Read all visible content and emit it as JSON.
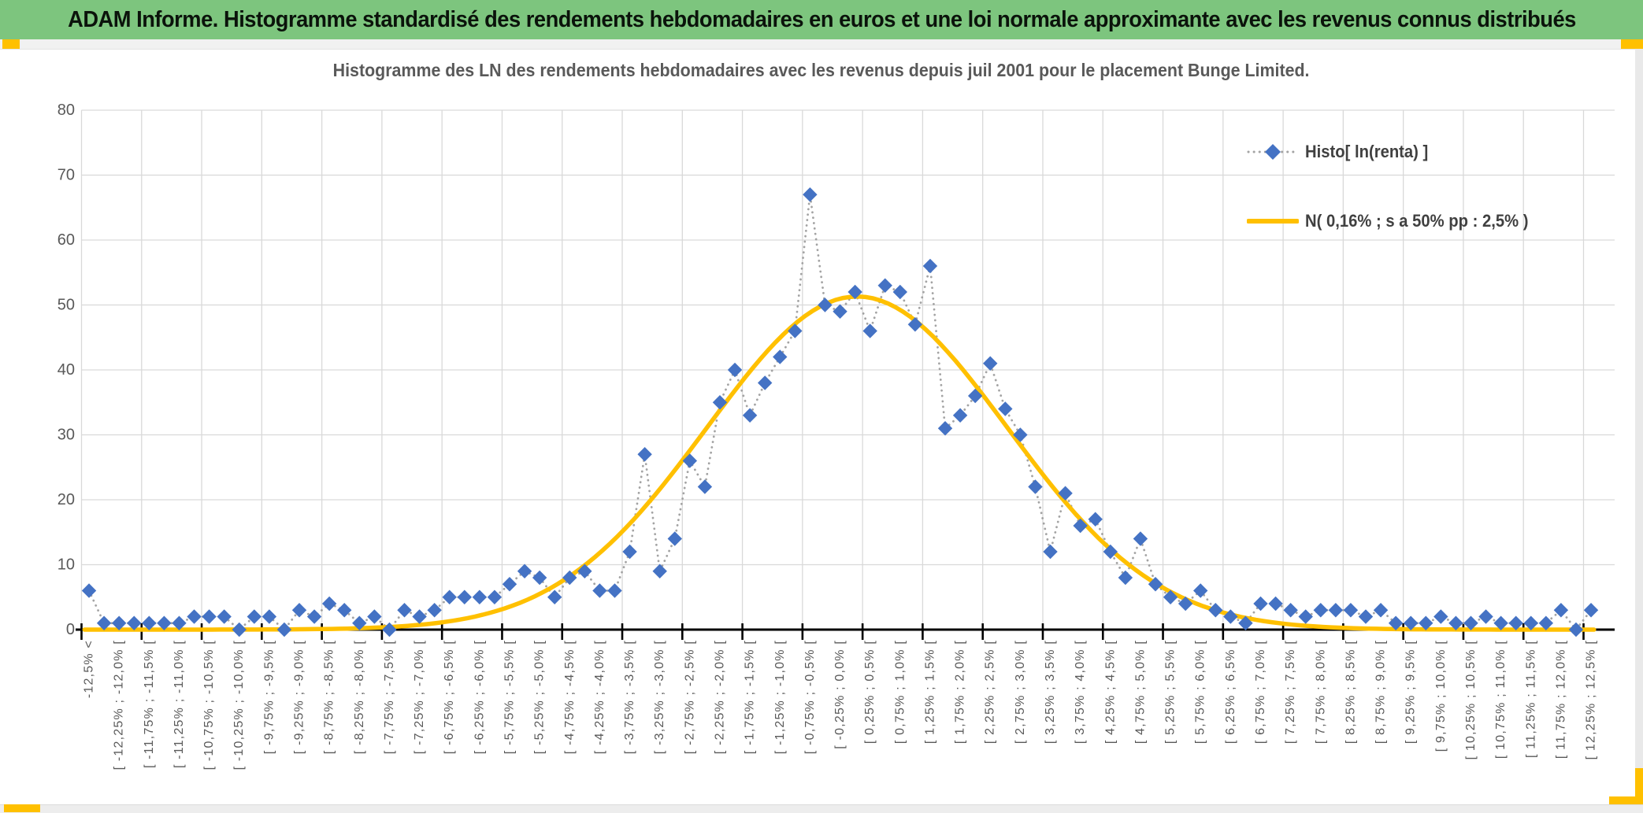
{
  "window": {
    "header_title": "ADAM Informe. Histogramme standardisé des rendements hebdomadaires en euros et une loi normale approximante avec les revenus connus distribués",
    "accent_color": "#ffc000",
    "header_bg_color": "#7dc57e"
  },
  "chart_data": {
    "type": "line",
    "title": "Histogramme des LN des rendements hebdomadaires avec les revenus depuis juil 2001 pour le placement Bunge Limited.",
    "ylim": [
      0,
      80
    ],
    "yticks": [
      0,
      10,
      20,
      30,
      40,
      50,
      60,
      70,
      80
    ],
    "grid": "both",
    "legend_position": "top-right",
    "x_label_step": 2,
    "x_labels": [
      "-12,5% <",
      "[ -12,25% ; -12,0% [",
      "[ -11,75% ; -11,5% [",
      "[ -11,25% ; -11,0% [",
      "[ -10,75% ; -10,5% [",
      "[ -10,25% ; -10,0% [",
      "[ -9,75% ; -9,5% [",
      "[ -9,25% ; -9,0% [",
      "[ -8,75% ; -8,5% [",
      "[ -8,25% ; -8,0% [",
      "[ -7,75% ; -7,5% [",
      "[ -7,25% ; -7,0% [",
      "[ -6,75% ; -6,5% [",
      "[ -6,25% ; -6,0% [",
      "[ -5,75% ; -5,5% [",
      "[ -5,25% ; -5,0% [",
      "[ -4,75% ; -4,5% [",
      "[ -4,25% ; -4,0% [",
      "[ -3,75% ; -3,5% [",
      "[ -3,25% ; -3,0% [",
      "[ -2,75% ; -2,5% [",
      "[ -2,25% ; -2,0% [",
      "[ -1,75% ; -1,5% [",
      "[ -1,25% ; -1,0% [",
      "[ -0,75% ; -0,5% [",
      "[ -0,25% ; 0,0% [",
      "[ 0,25% ; 0,5% [",
      "[ 0,75% ; 1,0% [",
      "[ 1,25% ; 1,5% [",
      "[ 1,75% ; 2,0% [",
      "[ 2,25% ; 2,5% [",
      "[ 2,75% ; 3,0% [",
      "[ 3,25% ; 3,5% [",
      "[ 3,75% ; 4,0% [",
      "[ 4,25% ; 4,5% [",
      "[ 4,75% ; 5,0% [",
      "[ 5,25% ; 5,5% [",
      "[ 5,75% ; 6,0% [",
      "[ 6,25% ; 6,5% [",
      "[ 6,75% ; 7,0% [",
      "[ 7,25% ; 7,5% [",
      "[ 7,75% ; 8,0% [",
      "[ 8,25% ; 8,5% [",
      "[ 8,75% ; 9,0% [",
      "[ 9,25% ; 9,5% [",
      "[ 9,75% ; 10,0% [",
      "[ 10,25% ; 10,5% [",
      "[ 10,75% ; 11,0% [",
      "[ 11,25% ; 11,5% [",
      "[ 11,75% ; 12,0% [",
      "[ 12,25% ; 12,5% ["
    ],
    "series": [
      {
        "name": "Histo[ ln(renta) ]",
        "kind": "scatter-dotted-line",
        "marker": "diamond",
        "marker_color": "#4472c4",
        "line_color": "#a3a3a3",
        "values": [
          6,
          1,
          1,
          1,
          1,
          1,
          1,
          2,
          2,
          2,
          0,
          2,
          2,
          0,
          3,
          2,
          4,
          3,
          1,
          2,
          0,
          3,
          2,
          3,
          5,
          5,
          5,
          5,
          7,
          9,
          8,
          5,
          8,
          9,
          6,
          6,
          12,
          27,
          9,
          14,
          26,
          22,
          35,
          40,
          33,
          38,
          42,
          46,
          67,
          50,
          49,
          52,
          46,
          53,
          52,
          47,
          56,
          31,
          33,
          36,
          41,
          34,
          30,
          22,
          12,
          21,
          16,
          17,
          12,
          8,
          14,
          7,
          5,
          4,
          6,
          3,
          2,
          1,
          4,
          4,
          3,
          2,
          3,
          3,
          3,
          2,
          3,
          1,
          1,
          1,
          2,
          1,
          1,
          2,
          1,
          1,
          1,
          1,
          3,
          0,
          3
        ]
      },
      {
        "name": "N( 0,16% ; s a 50% pp : 2,5% )",
        "kind": "normal-curve",
        "line_color": "#ffc000",
        "mean_pct": 0.16,
        "sd_pct": 2.5,
        "peak_value": 51.3,
        "bin_width_pct": 0.25,
        "first_bin_center_pct": -12.625
      }
    ],
    "colors": {
      "grid": "#d9d9d9",
      "axis": "#000000",
      "tick_labels": "#595959",
      "title": "#595959",
      "legend_text": "#404040"
    }
  }
}
